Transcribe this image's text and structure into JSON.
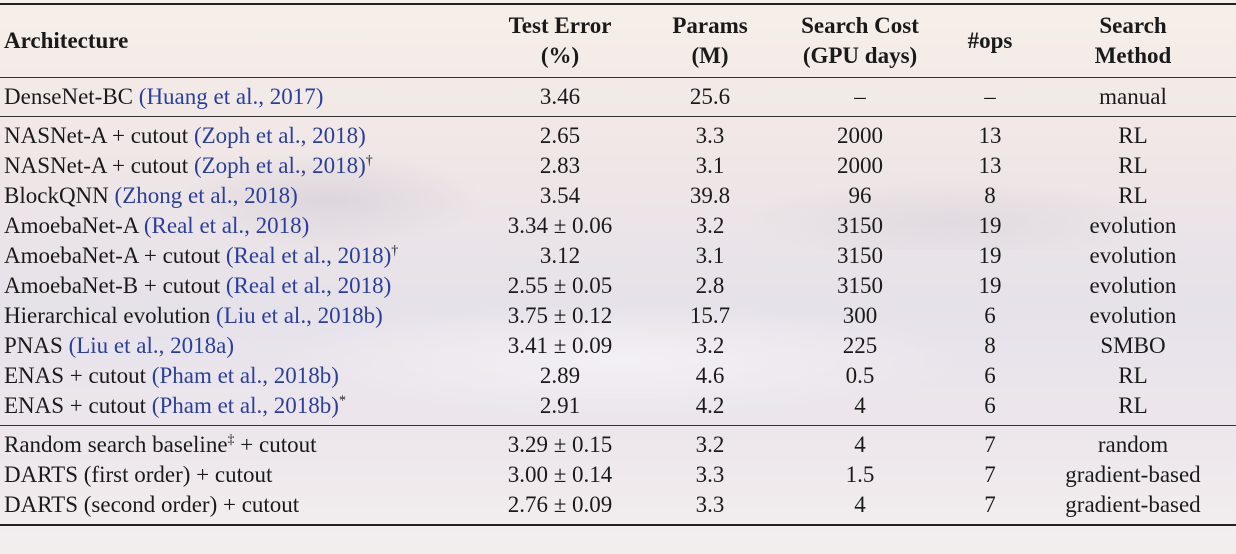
{
  "headers": {
    "architecture": "Architecture",
    "test_error_l1": "Test Error",
    "test_error_l2": "(%)",
    "params_l1": "Params",
    "params_l2": "(M)",
    "cost_l1": "Search Cost",
    "cost_l2": "(GPU days)",
    "ops": "#ops",
    "method_l1": "Search",
    "method_l2": "Method"
  },
  "groups": [
    [
      {
        "name": "DenseNet-BC",
        "cite": "(Huang et al., 2017)",
        "mark": "",
        "error": "3.46",
        "params": "25.6",
        "cost": "–",
        "ops": "–",
        "method": "manual"
      }
    ],
    [
      {
        "name": "NASNet-A + cutout",
        "cite": "(Zoph et al., 2018)",
        "mark": "",
        "error": "2.65",
        "params": "3.3",
        "cost": "2000",
        "ops": "13",
        "method": "RL"
      },
      {
        "name": "NASNet-A + cutout",
        "cite": "(Zoph et al., 2018)",
        "mark": "†",
        "error": "2.83",
        "params": "3.1",
        "cost": "2000",
        "ops": "13",
        "method": "RL"
      },
      {
        "name": "BlockQNN",
        "cite": "(Zhong et al., 2018)",
        "mark": "",
        "error": "3.54",
        "params": "39.8",
        "cost": "96",
        "ops": "8",
        "method": "RL"
      },
      {
        "name": "AmoebaNet-A",
        "cite": "(Real et al., 2018)",
        "mark": "",
        "error": "3.34 ± 0.06",
        "params": "3.2",
        "cost": "3150",
        "ops": "19",
        "method": "evolution"
      },
      {
        "name": "AmoebaNet-A + cutout",
        "cite": "(Real et al., 2018)",
        "mark": "†",
        "error": "3.12",
        "params": "3.1",
        "cost": "3150",
        "ops": "19",
        "method": "evolution"
      },
      {
        "name": "AmoebaNet-B + cutout",
        "cite": "(Real et al., 2018)",
        "mark": "",
        "error": "2.55 ± 0.05",
        "params": "2.8",
        "cost": "3150",
        "ops": "19",
        "method": "evolution"
      },
      {
        "name": "Hierarchical evolution",
        "cite": "(Liu et al., 2018b)",
        "mark": "",
        "error": "3.75 ± 0.12",
        "params": "15.7",
        "cost": "300",
        "ops": "6",
        "method": "evolution"
      },
      {
        "name": "PNAS",
        "cite": "(Liu et al., 2018a)",
        "mark": "",
        "error": "3.41 ± 0.09",
        "params": "3.2",
        "cost": "225",
        "ops": "8",
        "method": "SMBO"
      },
      {
        "name": "ENAS + cutout",
        "cite": "(Pham et al., 2018b)",
        "mark": "",
        "error": "2.89",
        "params": "4.6",
        "cost": "0.5",
        "ops": "6",
        "method": "RL"
      },
      {
        "name": "ENAS + cutout",
        "cite": "(Pham et al., 2018b)",
        "mark": "*",
        "error": "2.91",
        "params": "4.2",
        "cost": "4",
        "ops": "6",
        "method": "RL"
      }
    ],
    [
      {
        "name": "Random search baseline",
        "cite": "",
        "mark": "‡",
        "suffix": " + cutout",
        "error": "3.29 ± 0.15",
        "params": "3.2",
        "cost": "4",
        "ops": "7",
        "method": "random"
      },
      {
        "name": "DARTS (first order) + cutout",
        "cite": "",
        "mark": "",
        "error": "3.00 ± 0.14",
        "params": "3.3",
        "cost": "1.5",
        "ops": "7",
        "method": "gradient-based"
      },
      {
        "name": "DARTS (second order) + cutout",
        "cite": "",
        "mark": "",
        "error": "2.76 ± 0.09",
        "params": "3.3",
        "cost": "4",
        "ops": "7",
        "method": "gradient-based"
      }
    ]
  ],
  "colors": {
    "citation": "#2a3f9a",
    "text": "#1a1a1a"
  }
}
